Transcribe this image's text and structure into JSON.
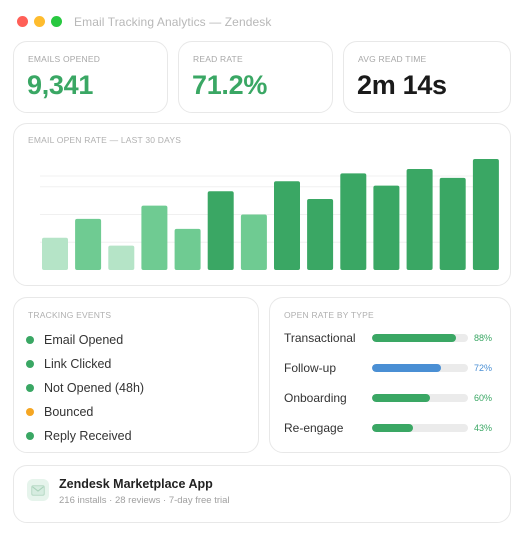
{
  "window": {
    "title": "Email Tracking Analytics — Zendesk"
  },
  "kpis": [
    {
      "label": "EMAILS OPENED",
      "value": "9,341",
      "color": "#3aa764"
    },
    {
      "label": "READ RATE",
      "value": "71.2%",
      "color": "#3aa764"
    },
    {
      "label": "AVG READ TIME",
      "value": "2m 14s",
      "color": "#1a1a1a"
    }
  ],
  "open_rate_chart": {
    "title": "EMAIL OPEN RATE — LAST 30 DAYS",
    "chart_data": {
      "type": "bar",
      "title": "EMAIL OPEN RATE — LAST 30 DAYS",
      "values": [
        29,
        46,
        22,
        58,
        37,
        71,
        50,
        80,
        64,
        87,
        76,
        91,
        83,
        100
      ],
      "ylim": [
        0,
        100
      ],
      "grid": true,
      "colors": [
        "#b5e4c7",
        "#6fcb92",
        "#b5e4c7",
        "#6fcb92",
        "#6fcb92",
        "#3aa764",
        "#6fcb92",
        "#3aa764",
        "#3aa764",
        "#3aa764",
        "#3aa764",
        "#3aa764",
        "#3aa764",
        "#3aa764"
      ]
    }
  },
  "tracking_events": {
    "title": "TRACKING EVENTS",
    "items": [
      {
        "label": "Email Opened",
        "color": "#3aa764"
      },
      {
        "label": "Link Clicked",
        "color": "#3aa764"
      },
      {
        "label": "Not Opened (48h)",
        "color": "#3aa764"
      },
      {
        "label": "Bounced",
        "color": "#f5a623"
      },
      {
        "label": "Reply Received",
        "color": "#3aa764"
      }
    ]
  },
  "open_rate_by_type": {
    "title": "OPEN RATE BY TYPE",
    "items": [
      {
        "label": "Transactional",
        "percent": 88,
        "percent_label": "88%",
        "color": "#3aa764"
      },
      {
        "label": "Follow-up",
        "percent": 72,
        "percent_label": "72%",
        "color": "#4a8fd4"
      },
      {
        "label": "Onboarding",
        "percent": 60,
        "percent_label": "60%",
        "color": "#3aa764"
      },
      {
        "label": "Re-engage",
        "percent": 43,
        "percent_label": "43%",
        "color": "#3aa764"
      }
    ]
  },
  "app_card": {
    "icon": "mail-icon",
    "title": "Zendesk Marketplace App",
    "subtitle": "216 installs · 28 reviews · 7-day free trial"
  }
}
